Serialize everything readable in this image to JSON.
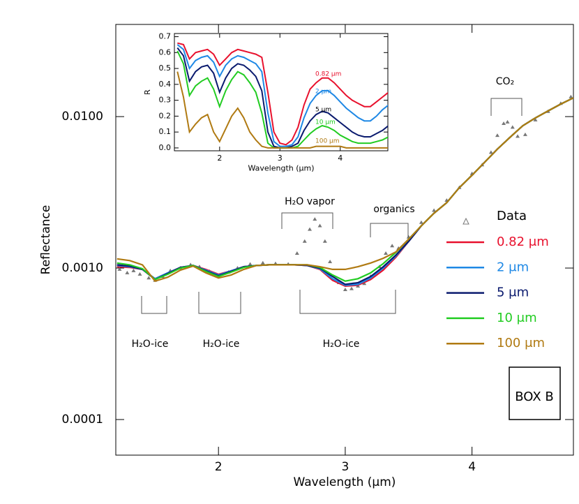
{
  "chart_data": [
    {
      "type": "line",
      "log_y": true,
      "xlabel": "Wavelength (μm)",
      "ylabel": "Reflectance",
      "xlim": [
        1.19,
        4.8
      ],
      "ylim": [
        5.82e-05,
        0.0406
      ],
      "xticks": [
        2,
        3,
        4
      ],
      "yticks": [
        0.0001,
        {
          "value": 0.001,
          "label": "0.0010"
        },
        {
          "value": 0.01,
          "label": "0.0100"
        }
      ],
      "x": [
        1.2,
        1.3,
        1.4,
        1.5,
        1.6,
        1.7,
        1.8,
        1.9,
        2.0,
        2.1,
        2.2,
        2.3,
        2.4,
        2.5,
        2.6,
        2.7,
        2.8,
        2.9,
        3.0,
        3.1,
        3.2,
        3.3,
        3.4,
        3.5,
        3.6,
        3.7,
        3.8,
        3.9,
        4.0,
        4.1,
        4.2,
        4.3,
        4.4,
        4.5,
        4.6,
        4.7,
        4.8
      ],
      "series": [
        {
          "name": "Data",
          "type": "scatter",
          "color": "#777777",
          "x": [
            1.22,
            1.28,
            1.33,
            1.38,
            1.45,
            1.5,
            1.56,
            1.62,
            1.7,
            1.78,
            1.85,
            1.93,
            2.0,
            2.08,
            2.15,
            2.25,
            2.35,
            2.45,
            2.55,
            2.62,
            2.68,
            2.72,
            2.76,
            2.8,
            2.84,
            2.88,
            2.95,
            3.0,
            3.05,
            3.1,
            3.15,
            3.2,
            3.27,
            3.32,
            3.37,
            3.42,
            3.5,
            3.6,
            3.7,
            3.8,
            3.9,
            4.0,
            4.08,
            4.15,
            4.2,
            4.25,
            4.28,
            4.32,
            4.36,
            4.42,
            4.5,
            4.6,
            4.7,
            4.78
          ],
          "values": [
            0.00098,
            0.00093,
            0.00096,
            0.00091,
            0.00086,
            0.00083,
            0.00088,
            0.00096,
            0.001,
            0.00105,
            0.00102,
            0.00095,
            0.00089,
            0.00094,
            0.001,
            0.00106,
            0.00108,
            0.00107,
            0.00106,
            0.00125,
            0.0015,
            0.0018,
            0.0021,
            0.0019,
            0.0015,
            0.0011,
            0.0008,
            0.00072,
            0.00073,
            0.00076,
            0.00079,
            0.00088,
            0.00102,
            0.00125,
            0.0014,
            0.00135,
            0.0016,
            0.002,
            0.0024,
            0.0028,
            0.0034,
            0.0042,
            0.0048,
            0.0058,
            0.0075,
            0.009,
            0.0092,
            0.0085,
            0.0074,
            0.0076,
            0.0095,
            0.0108,
            0.0122,
            0.0135
          ]
        },
        {
          "name": "0.82 μm",
          "color": "#e8112d",
          "values": [
            0.00102,
            0.00101,
            0.00098,
            0.00085,
            0.00093,
            0.00101,
            0.00104,
            0.00098,
            0.00091,
            0.00096,
            0.00102,
            0.00104,
            0.00105,
            0.00105,
            0.00105,
            0.00104,
            0.00098,
            0.00083,
            0.00076,
            0.00077,
            0.00084,
            0.00097,
            0.00118,
            0.0015,
            0.0019,
            0.0023,
            0.0027,
            0.0034,
            0.0041,
            0.005,
            0.0061,
            0.0073,
            0.0087,
            0.0098,
            0.0109,
            0.0121,
            0.0133
          ]
        },
        {
          "name": "2 μm",
          "color": "#1e88e5",
          "values": [
            0.00104,
            0.00102,
            0.00098,
            0.00085,
            0.00093,
            0.00101,
            0.00104,
            0.00097,
            0.0009,
            0.00096,
            0.00102,
            0.00104,
            0.00105,
            0.00105,
            0.00105,
            0.00104,
            0.00099,
            0.00085,
            0.00077,
            0.00078,
            0.00086,
            0.001,
            0.0012,
            0.0015,
            0.0019,
            0.0023,
            0.0027,
            0.0034,
            0.0041,
            0.005,
            0.0061,
            0.0073,
            0.0087,
            0.0098,
            0.0109,
            0.0121,
            0.0133
          ]
        },
        {
          "name": "5 μm",
          "color": "#0a1a6e",
          "values": [
            0.00105,
            0.00103,
            0.00098,
            0.00084,
            0.00092,
            0.00101,
            0.00104,
            0.00096,
            0.00089,
            0.00095,
            0.00102,
            0.00104,
            0.00105,
            0.00105,
            0.00105,
            0.00104,
            0.001,
            0.00088,
            0.00078,
            0.0008,
            0.00088,
            0.00102,
            0.00122,
            0.0015,
            0.0019,
            0.0023,
            0.0027,
            0.0034,
            0.0041,
            0.005,
            0.0061,
            0.0073,
            0.0087,
            0.0098,
            0.0109,
            0.0121,
            0.0133
          ]
        },
        {
          "name": "10 μm",
          "color": "#22cc22",
          "values": [
            0.00108,
            0.00105,
            0.00099,
            0.00084,
            0.00091,
            0.001,
            0.00104,
            0.00095,
            0.00088,
            0.00094,
            0.00101,
            0.00104,
            0.00105,
            0.00105,
            0.00105,
            0.00105,
            0.00101,
            0.0009,
            0.00082,
            0.00085,
            0.00093,
            0.00107,
            0.00127,
            0.00155,
            0.0019,
            0.0023,
            0.0027,
            0.0034,
            0.0041,
            0.005,
            0.0061,
            0.0073,
            0.0087,
            0.0098,
            0.0109,
            0.0121,
            0.0133
          ]
        },
        {
          "name": "100 μm",
          "color": "#b07a12",
          "values": [
            0.00115,
            0.00112,
            0.00105,
            0.00082,
            0.00087,
            0.00097,
            0.00103,
            0.00093,
            0.00086,
            0.0009,
            0.00098,
            0.00104,
            0.00105,
            0.00105,
            0.00105,
            0.00105,
            0.00102,
            0.00098,
            0.00098,
            0.00102,
            0.00108,
            0.00116,
            0.00128,
            0.00155,
            0.0019,
            0.0023,
            0.0027,
            0.0034,
            0.0041,
            0.005,
            0.0061,
            0.0073,
            0.0087,
            0.0098,
            0.0109,
            0.0121,
            0.0133
          ]
        }
      ],
      "legend_title": "Data",
      "annotations": [
        "CO₂",
        "H₂O vapor",
        "organics",
        "H₂O-ice",
        "H₂O-ice",
        "H₂O-ice",
        "BOX B"
      ]
    },
    {
      "type": "line",
      "xlabel": "Wavelength (μm)",
      "ylabel": "R",
      "xlim": [
        1.25,
        4.79
      ],
      "ylim": [
        -0.018,
        0.72
      ],
      "xticks": [
        2,
        3,
        4
      ],
      "yticks": [
        {
          "value": 0,
          "label": "0.0"
        },
        0.1,
        0.2,
        0.3,
        0.4,
        0.5,
        0.6,
        0.7
      ],
      "x": [
        1.3,
        1.4,
        1.5,
        1.6,
        1.7,
        1.8,
        1.9,
        2.0,
        2.1,
        2.2,
        2.3,
        2.4,
        2.5,
        2.6,
        2.7,
        2.8,
        2.9,
        3.0,
        3.1,
        3.2,
        3.3,
        3.4,
        3.5,
        3.6,
        3.7,
        3.8,
        3.9,
        4.0,
        4.1,
        4.2,
        4.3,
        4.4,
        4.5,
        4.6,
        4.7,
        4.8
      ],
      "series": [
        {
          "name": "0.82 μm",
          "color": "#e8112d",
          "values": [
            0.66,
            0.65,
            0.56,
            0.6,
            0.61,
            0.62,
            0.59,
            0.52,
            0.56,
            0.6,
            0.62,
            0.61,
            0.6,
            0.59,
            0.57,
            0.35,
            0.1,
            0.03,
            0.02,
            0.05,
            0.13,
            0.27,
            0.37,
            0.41,
            0.44,
            0.44,
            0.41,
            0.37,
            0.33,
            0.3,
            0.28,
            0.26,
            0.26,
            0.29,
            0.32,
            0.35
          ]
        },
        {
          "name": "2 μm",
          "color": "#1e88e5",
          "values": [
            0.65,
            0.62,
            0.5,
            0.55,
            0.57,
            0.58,
            0.54,
            0.45,
            0.52,
            0.56,
            0.58,
            0.57,
            0.55,
            0.53,
            0.48,
            0.22,
            0.04,
            0.01,
            0.01,
            0.02,
            0.07,
            0.19,
            0.28,
            0.33,
            0.36,
            0.36,
            0.33,
            0.29,
            0.25,
            0.22,
            0.19,
            0.17,
            0.17,
            0.2,
            0.24,
            0.27
          ]
        },
        {
          "name": "5 μm",
          "color": "#0a1a6e",
          "values": [
            0.63,
            0.58,
            0.42,
            0.48,
            0.51,
            0.52,
            0.47,
            0.35,
            0.44,
            0.5,
            0.53,
            0.52,
            0.49,
            0.45,
            0.36,
            0.1,
            0.01,
            0,
            0,
            0.01,
            0.03,
            0.11,
            0.17,
            0.21,
            0.23,
            0.22,
            0.19,
            0.16,
            0.13,
            0.1,
            0.08,
            0.07,
            0.07,
            0.09,
            0.11,
            0.14
          ]
        },
        {
          "name": "10 μm",
          "color": "#22cc22",
          "values": [
            0.61,
            0.53,
            0.33,
            0.39,
            0.42,
            0.44,
            0.37,
            0.26,
            0.36,
            0.43,
            0.48,
            0.46,
            0.41,
            0.35,
            0.22,
            0.03,
            0,
            0,
            0,
            0,
            0.01,
            0.05,
            0.09,
            0.12,
            0.14,
            0.13,
            0.11,
            0.08,
            0.06,
            0.04,
            0.03,
            0.03,
            0.03,
            0.04,
            0.05,
            0.07
          ]
        },
        {
          "name": "100 μm",
          "color": "#b07a12",
          "values": [
            0.48,
            0.32,
            0.1,
            0.15,
            0.19,
            0.21,
            0.1,
            0.04,
            0.12,
            0.2,
            0.25,
            0.19,
            0.1,
            0.05,
            0.01,
            0,
            0,
            0,
            0,
            0,
            0,
            0,
            0,
            0.01,
            0.01,
            0.01,
            0.01,
            0.01,
            0,
            0,
            0,
            0,
            0,
            0,
            0,
            0
          ]
        }
      ]
    }
  ]
}
